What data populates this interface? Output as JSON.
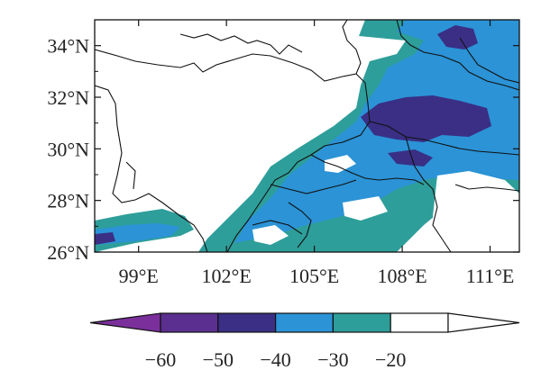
{
  "map": {
    "lat_labels": [
      "34°N",
      "32°N",
      "30°N",
      "28°N",
      "26°N"
    ],
    "lon_labels": [
      "99°E",
      "102°E",
      "105°E",
      "108°E",
      "111°E"
    ],
    "lat_range": [
      26,
      35
    ],
    "lon_range": [
      97.5,
      112
    ],
    "lat_ticks": [
      34,
      32,
      30,
      28,
      26
    ],
    "lon_ticks": [
      99,
      102,
      105,
      108,
      111
    ]
  },
  "colorbar": {
    "labels": [
      "−60",
      "−50",
      "−40",
      "−30",
      "−20"
    ],
    "colors": [
      "#7b2f9b",
      "#5a2f8f",
      "#3a2f85",
      "#2b93d6",
      "#2e9e9a",
      "#ffffff"
    ],
    "extend": "both"
  },
  "palette": {
    "teal": "#2e9e9a",
    "light_blue": "#2b93d6",
    "dark_blue": "#3a2f85",
    "border": "#111111"
  }
}
